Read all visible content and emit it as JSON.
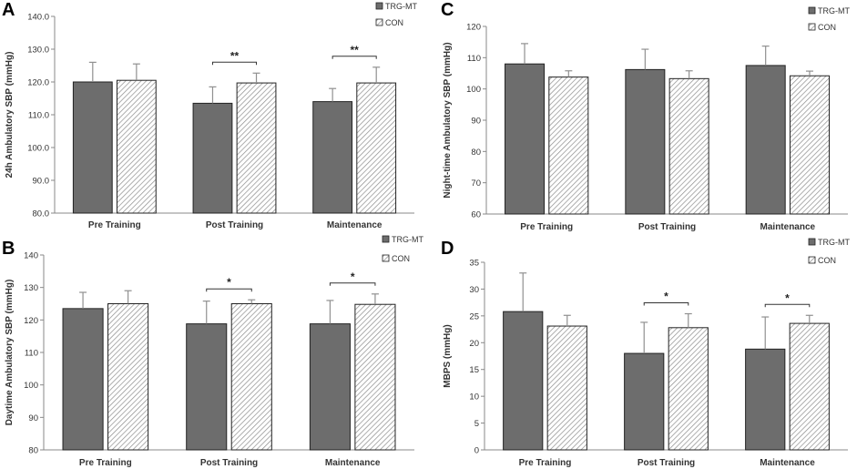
{
  "chart_data": [
    {
      "panel": "A",
      "type": "bar",
      "ylabel": "24h Ambulatory SBP (mmHg)",
      "ylim": [
        80,
        140
      ],
      "yticks": [
        "80.0",
        "90.0",
        "100.0",
        "110.0",
        "120.0",
        "130.0",
        "140.0"
      ],
      "categories": [
        "Pre Training",
        "Post Training",
        "Maintenance"
      ],
      "series": [
        {
          "name": "TRG-MT",
          "values": [
            120.0,
            113.5,
            114.0
          ],
          "errors": [
            6.0,
            5.0,
            4.0
          ]
        },
        {
          "name": "CON",
          "values": [
            120.5,
            119.7,
            119.7
          ],
          "errors": [
            5.0,
            3.0,
            4.8
          ]
        }
      ],
      "significance": [
        {
          "category": "Post Training",
          "label": "**"
        },
        {
          "category": "Maintenance",
          "label": "**"
        }
      ]
    },
    {
      "panel": "C",
      "type": "bar",
      "ylabel": "Night-time Ambulatory SBP (mmHg)",
      "ylim": [
        60,
        120
      ],
      "yticks": [
        "60",
        "70",
        "80",
        "90",
        "100",
        "110",
        "120"
      ],
      "categories": [
        "Pre Training",
        "Post Training",
        "Maintenance"
      ],
      "series": [
        {
          "name": "TRG-MT",
          "values": [
            108.0,
            106.2,
            107.5
          ],
          "errors": [
            6.5,
            6.5,
            6.2
          ]
        },
        {
          "name": "CON",
          "values": [
            103.8,
            103.3,
            104.2
          ],
          "errors": [
            2.0,
            2.5,
            1.5
          ]
        }
      ],
      "significance": []
    },
    {
      "panel": "B",
      "type": "bar",
      "ylabel": "Daytime Ambulatory SBP (mmHg)",
      "ylim": [
        80,
        140
      ],
      "yticks": [
        "80",
        "90",
        "100",
        "110",
        "120",
        "130",
        "140"
      ],
      "categories": [
        "Pre Training",
        "Post Training",
        "Maintenance"
      ],
      "series": [
        {
          "name": "TRG-MT",
          "values": [
            123.5,
            118.8,
            118.8
          ],
          "errors": [
            5.0,
            7.0,
            7.2
          ]
        },
        {
          "name": "CON",
          "values": [
            125.0,
            125.0,
            124.8
          ],
          "errors": [
            4.0,
            1.2,
            3.2
          ]
        }
      ],
      "significance": [
        {
          "category": "Post Training",
          "label": "*"
        },
        {
          "category": "Maintenance",
          "label": "*"
        }
      ]
    },
    {
      "panel": "D",
      "type": "bar",
      "ylabel": "MBPS (mmHg)",
      "ylim": [
        0,
        35
      ],
      "yticks": [
        "0",
        "5",
        "10",
        "15",
        "20",
        "25",
        "30",
        "35"
      ],
      "categories": [
        "Pre Training",
        "Post Training",
        "Maintenance"
      ],
      "series": [
        {
          "name": "TRG-MT",
          "values": [
            25.8,
            18.0,
            18.8
          ],
          "errors": [
            7.2,
            5.8,
            6.0
          ]
        },
        {
          "name": "CON",
          "values": [
            23.1,
            22.8,
            23.6
          ],
          "errors": [
            2.0,
            2.6,
            1.5
          ]
        }
      ],
      "significance": [
        {
          "category": "Post Training",
          "label": "*"
        },
        {
          "category": "Maintenance",
          "label": "*"
        }
      ]
    }
  ],
  "colors": {
    "trg_fill": "#6d6d6d",
    "bar_stroke": "#222222",
    "hatch_line": "#8c8c8c",
    "error_bar": "#909090",
    "axis": "#888888"
  }
}
